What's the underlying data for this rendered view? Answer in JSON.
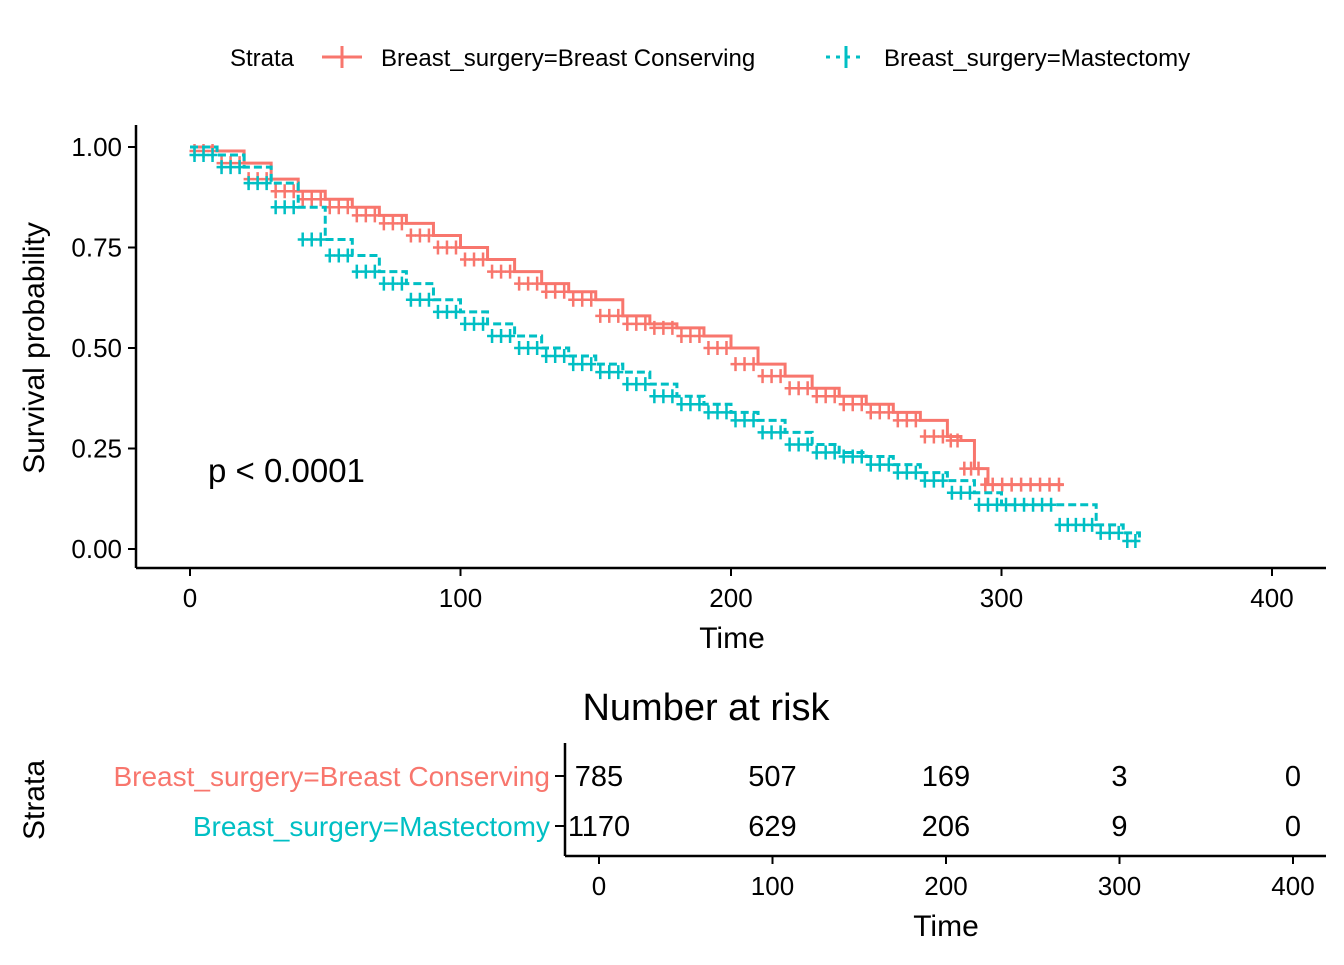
{
  "chart_data": [
    {
      "type": "line",
      "subtype": "kaplan-meier",
      "xlabel": "Time",
      "ylabel": "Survival probability",
      "xlim": [
        -20,
        420
      ],
      "ylim": [
        0,
        1
      ],
      "xticks": [
        "0",
        "100",
        "200",
        "300",
        "400"
      ],
      "yticks": [
        "0.00",
        "0.25",
        "0.50",
        "0.75",
        "1.00"
      ],
      "annotation": "p < 0.0001",
      "legend": {
        "title": "Strata",
        "position": "top",
        "entries": [
          "Breast_surgery=Breast Conserving",
          "Breast_surgery=Mastectomy"
        ]
      },
      "series": [
        {
          "name": "Breast_surgery=Breast Conserving",
          "color": "#F8766D",
          "x": [
            0,
            10,
            20,
            30,
            40,
            50,
            60,
            70,
            80,
            90,
            100,
            110,
            120,
            130,
            140,
            150,
            160,
            170,
            180,
            190,
            200,
            210,
            220,
            230,
            240,
            250,
            260,
            270,
            280,
            285,
            290,
            293,
            295,
            323
          ],
          "y": [
            1.0,
            0.99,
            0.96,
            0.92,
            0.89,
            0.87,
            0.85,
            0.83,
            0.81,
            0.78,
            0.75,
            0.72,
            0.69,
            0.66,
            0.64,
            0.62,
            0.58,
            0.56,
            0.55,
            0.53,
            0.5,
            0.46,
            0.43,
            0.4,
            0.38,
            0.36,
            0.34,
            0.32,
            0.28,
            0.27,
            0.2,
            0.2,
            0.16,
            0.16
          ]
        },
        {
          "name": "Breast_surgery=Mastectomy",
          "color": "#00BFC4",
          "x": [
            0,
            10,
            20,
            30,
            40,
            50,
            60,
            70,
            80,
            90,
            100,
            110,
            120,
            130,
            140,
            150,
            160,
            170,
            180,
            190,
            200,
            210,
            220,
            230,
            240,
            250,
            260,
            270,
            280,
            290,
            300,
            310,
            320,
            335,
            345,
            351
          ],
          "y": [
            1.0,
            0.98,
            0.95,
            0.91,
            0.85,
            0.77,
            0.73,
            0.69,
            0.66,
            0.62,
            0.59,
            0.56,
            0.53,
            0.5,
            0.48,
            0.46,
            0.44,
            0.41,
            0.38,
            0.36,
            0.34,
            0.32,
            0.29,
            0.26,
            0.24,
            0.23,
            0.21,
            0.19,
            0.17,
            0.14,
            0.11,
            0.11,
            0.11,
            0.06,
            0.04,
            0.02
          ]
        }
      ]
    },
    {
      "type": "table",
      "title": "Number at risk",
      "ylabel": "Strata",
      "xlabel": "Time",
      "xlim": [
        -20,
        420
      ],
      "xticks": [
        "0",
        "100",
        "200",
        "300",
        "400"
      ],
      "times": [
        0,
        100,
        200,
        300,
        400
      ],
      "rows": [
        {
          "label": "Breast_surgery=Breast Conserving",
          "color": "#F8766D",
          "values": [
            "785",
            "507",
            "169",
            "3",
            "0"
          ]
        },
        {
          "label": "Breast_surgery=Mastectomy",
          "color": "#00BFC4",
          "values": [
            "1170",
            "629",
            "206",
            "9",
            "0"
          ]
        }
      ]
    }
  ]
}
